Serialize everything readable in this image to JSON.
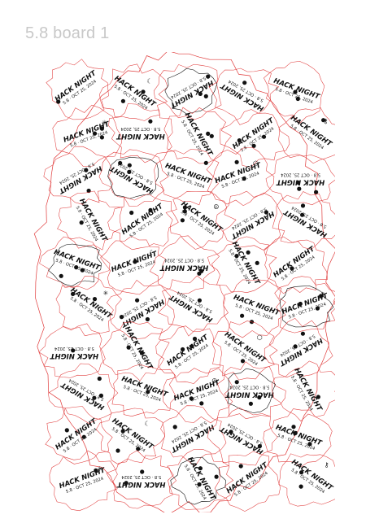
{
  "header": {
    "title": "5.8 board 1"
  },
  "board": {
    "outline_color": "#e03a3a",
    "ink_color": "#111111",
    "piece_title": "HACK NIGHT",
    "piece_subtitle": "5.8 · OCT 25, 2024",
    "symbols": [
      "star-icon",
      "moon-icon",
      "peace-icon",
      "cube-icon",
      "key-icon"
    ]
  }
}
